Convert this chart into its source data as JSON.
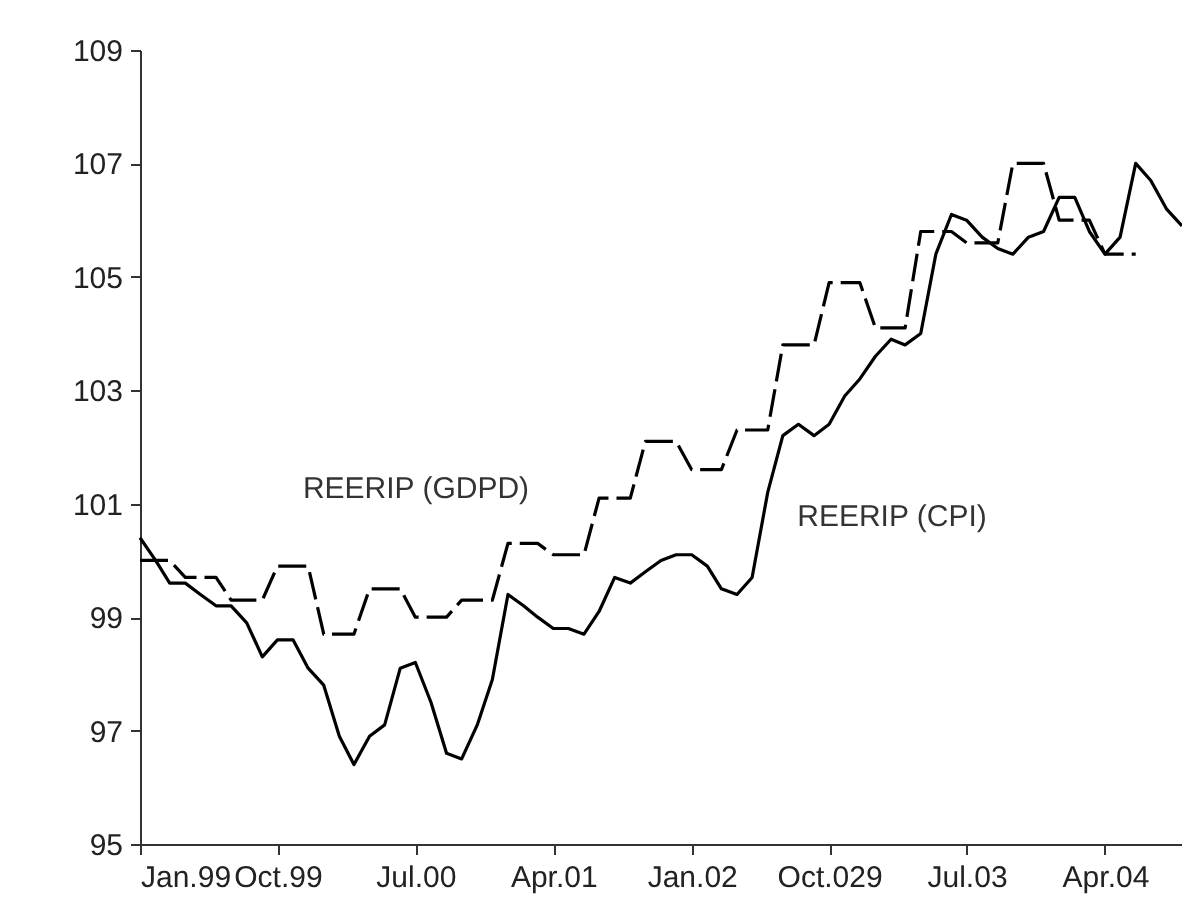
{
  "chart_data": {
    "type": "line",
    "x": [
      "1999-01",
      "1999-02",
      "1999-03",
      "1999-04",
      "1999-05",
      "1999-06",
      "1999-07",
      "1999-08",
      "1999-09",
      "1999-10",
      "1999-11",
      "1999-12",
      "2000-01",
      "2000-02",
      "2000-03",
      "2000-04",
      "2000-05",
      "2000-06",
      "2000-07",
      "2000-08",
      "2000-09",
      "2000-10",
      "2000-11",
      "2000-12",
      "2001-01",
      "2001-02",
      "2001-03",
      "2001-04",
      "2001-05",
      "2001-06",
      "2001-07",
      "2001-08",
      "2001-09",
      "2001-10",
      "2001-11",
      "2001-12",
      "2002-01",
      "2002-02",
      "2002-03",
      "2002-04",
      "2002-05",
      "2002-06",
      "2002-07",
      "2002-08",
      "2002-09",
      "2002-10",
      "2002-11",
      "2002-12",
      "2003-01",
      "2003-02",
      "2003-03",
      "2003-04",
      "2003-05",
      "2003-06",
      "2003-07",
      "2003-08",
      "2003-09",
      "2003-10",
      "2003-11",
      "2003-12",
      "2004-01",
      "2004-02",
      "2004-03",
      "2004-04",
      "2004-05",
      "2004-06",
      "2004-07",
      "2004-08",
      "2004-09"
    ],
    "series": [
      {
        "name": "REERIP (GDPD)",
        "color": "#000000",
        "line_style": "dashed",
        "values": [
          100.0,
          100.0,
          100.0,
          99.7,
          99.7,
          99.7,
          99.3,
          99.3,
          99.3,
          99.9,
          99.9,
          99.9,
          98.7,
          98.7,
          98.7,
          99.5,
          99.5,
          99.5,
          99.0,
          99.0,
          99.0,
          99.3,
          99.3,
          99.3,
          100.3,
          100.3,
          100.3,
          100.1,
          100.1,
          100.1,
          101.1,
          101.1,
          101.1,
          102.1,
          102.1,
          102.1,
          101.6,
          101.6,
          101.6,
          102.3,
          102.3,
          102.3,
          103.8,
          103.8,
          103.8,
          104.9,
          104.9,
          104.9,
          104.1,
          104.1,
          104.1,
          105.8,
          105.8,
          105.8,
          105.6,
          105.6,
          105.6,
          107.0,
          107.0,
          107.0,
          106.0,
          106.0,
          106.0,
          105.4,
          105.4,
          105.4,
          null,
          null,
          null
        ]
      },
      {
        "name": "REERIP (CPI)",
        "color": "#000000",
        "line_style": "solid",
        "values": [
          100.4,
          100.0,
          99.6,
          99.6,
          99.4,
          99.2,
          99.2,
          98.9,
          98.3,
          98.6,
          98.6,
          98.1,
          97.8,
          96.9,
          96.4,
          96.9,
          97.1,
          98.1,
          98.2,
          97.5,
          96.6,
          96.5,
          97.1,
          97.9,
          99.4,
          99.2,
          99.0,
          98.8,
          98.8,
          98.7,
          99.1,
          99.7,
          99.6,
          99.8,
          100.0,
          100.1,
          100.1,
          99.9,
          99.5,
          99.4,
          99.7,
          101.2,
          102.2,
          102.4,
          102.2,
          102.4,
          102.9,
          103.2,
          103.6,
          103.9,
          103.8,
          104.0,
          105.4,
          106.1,
          106.0,
          105.7,
          105.5,
          105.4,
          105.7,
          105.8,
          106.4,
          106.4,
          105.8,
          105.4,
          105.7,
          107.0,
          106.7,
          106.2,
          105.9
        ]
      }
    ],
    "xlim": [
      "1999-01",
      "2004-09"
    ],
    "xticks": [
      {
        "value": "1999-01",
        "label": "Jan.99"
      },
      {
        "value": "1999-10",
        "label": "Oct.99"
      },
      {
        "value": "2000-07",
        "label": "Jul.00"
      },
      {
        "value": "2001-04",
        "label": "Apr.01"
      },
      {
        "value": "2002-01",
        "label": "Jan.02"
      },
      {
        "value": "2002-10",
        "label": "Oct.029"
      },
      {
        "value": "2003-07",
        "label": "Jul.03"
      },
      {
        "value": "2004-04",
        "label": "Apr.04"
      }
    ],
    "ylim": [
      95,
      109
    ],
    "yticks": [
      95,
      97,
      99,
      101,
      103,
      105,
      107,
      109
    ],
    "grid": false,
    "legend": false,
    "marker": "none"
  }
}
